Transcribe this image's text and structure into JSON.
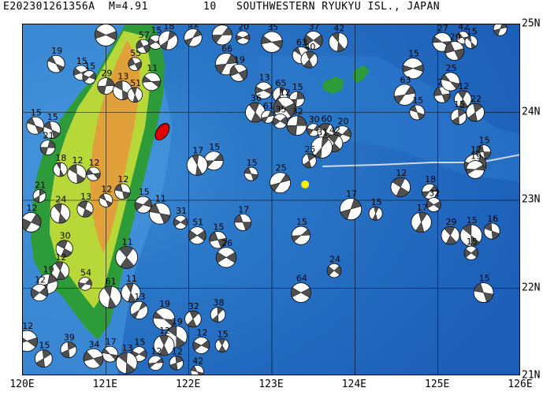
{
  "header": {
    "event_id": "E202301261356A",
    "magnitude": "M=4.91",
    "depth_fragment": "10",
    "region": "SOUTHWESTERN RYUKYU ISL., JAPAN"
  },
  "map": {
    "lon_range": [
      120,
      126
    ],
    "lat_range": [
      21,
      25
    ],
    "x_ticks": [
      "120E",
      "121E",
      "122E",
      "123E",
      "124E",
      "125E",
      "126E"
    ],
    "y_ticks": [
      "25N",
      "24N",
      "23N",
      "22N",
      "21N"
    ],
    "colors": {
      "deep_ocean": "#1c5fb8",
      "shelf_ocean": "#3f8fd8",
      "lowland": "#2e9b3a",
      "plain": "#b8d83a",
      "highland": "#e0a03a",
      "graticule": "#7fb2e6",
      "plate_boundary": "#cfd8e8",
      "event_star": "#e00000",
      "epicenter_marker": "#ffee00"
    },
    "mechanisms": [
      {
        "lon": 120.4,
        "lat": 24.55,
        "depth": "19"
      },
      {
        "lon": 120.7,
        "lat": 24.45,
        "depth": "15"
      },
      {
        "lon": 120.8,
        "lat": 24.4,
        "depth": "15"
      },
      {
        "lon": 121.0,
        "lat": 24.3,
        "depth": "29"
      },
      {
        "lon": 121.2,
        "lat": 24.25,
        "depth": "13"
      },
      {
        "lon": 121.35,
        "lat": 24.2,
        "depth": "51"
      },
      {
        "lon": 121.55,
        "lat": 24.35,
        "depth": "11"
      },
      {
        "lon": 121.35,
        "lat": 24.55,
        "depth": "55"
      },
      {
        "lon": 121.45,
        "lat": 24.75,
        "depth": "57"
      },
      {
        "lon": 121.6,
        "lat": 24.8,
        "depth": "15"
      },
      {
        "lon": 121.75,
        "lat": 24.82,
        "depth": "18"
      },
      {
        "lon": 121.0,
        "lat": 24.88,
        "depth": "13"
      },
      {
        "lon": 122.05,
        "lat": 24.85,
        "depth": "12"
      },
      {
        "lon": 122.4,
        "lat": 24.88,
        "depth": "21"
      },
      {
        "lon": 122.65,
        "lat": 24.85,
        "depth": "20"
      },
      {
        "lon": 123.0,
        "lat": 24.8,
        "depth": "35"
      },
      {
        "lon": 123.5,
        "lat": 24.82,
        "depth": "37"
      },
      {
        "lon": 123.8,
        "lat": 24.8,
        "depth": "42"
      },
      {
        "lon": 123.35,
        "lat": 24.65,
        "depth": "63"
      },
      {
        "lon": 123.45,
        "lat": 24.6,
        "depth": "40"
      },
      {
        "lon": 122.45,
        "lat": 24.55,
        "depth": "66"
      },
      {
        "lon": 122.6,
        "lat": 24.45,
        "depth": "19"
      },
      {
        "lon": 122.9,
        "lat": 24.25,
        "depth": "13"
      },
      {
        "lon": 123.1,
        "lat": 24.2,
        "depth": "65"
      },
      {
        "lon": 123.3,
        "lat": 24.15,
        "depth": "15"
      },
      {
        "lon": 123.15,
        "lat": 24.05,
        "depth": "12"
      },
      {
        "lon": 122.8,
        "lat": 24.0,
        "depth": "36"
      },
      {
        "lon": 122.95,
        "lat": 23.95,
        "depth": "61"
      },
      {
        "lon": 123.1,
        "lat": 23.9,
        "depth": "35"
      },
      {
        "lon": 123.3,
        "lat": 23.85,
        "depth": "32"
      },
      {
        "lon": 123.5,
        "lat": 23.8,
        "depth": "30"
      },
      {
        "lon": 123.65,
        "lat": 23.78,
        "depth": "60"
      },
      {
        "lon": 123.85,
        "lat": 23.75,
        "depth": "20"
      },
      {
        "lon": 123.75,
        "lat": 23.65,
        "depth": "42"
      },
      {
        "lon": 123.6,
        "lat": 23.6,
        "depth": "31"
      },
      {
        "lon": 123.45,
        "lat": 23.45,
        "depth": "25"
      },
      {
        "lon": 122.3,
        "lat": 23.45,
        "depth": "15"
      },
      {
        "lon": 122.1,
        "lat": 23.4,
        "depth": "17"
      },
      {
        "lon": 122.75,
        "lat": 23.3,
        "depth": "15"
      },
      {
        "lon": 123.1,
        "lat": 23.2,
        "depth": "25"
      },
      {
        "lon": 120.15,
        "lat": 23.85,
        "depth": "15"
      },
      {
        "lon": 120.35,
        "lat": 23.8,
        "depth": "15"
      },
      {
        "lon": 120.3,
        "lat": 23.6,
        "depth": "21"
      },
      {
        "lon": 120.45,
        "lat": 23.35,
        "depth": "18"
      },
      {
        "lon": 120.65,
        "lat": 23.3,
        "depth": "12"
      },
      {
        "lon": 120.85,
        "lat": 23.3,
        "depth": "12"
      },
      {
        "lon": 120.2,
        "lat": 23.05,
        "depth": "21"
      },
      {
        "lon": 120.1,
        "lat": 22.75,
        "depth": "12"
      },
      {
        "lon": 120.45,
        "lat": 22.85,
        "depth": "24"
      },
      {
        "lon": 120.75,
        "lat": 22.9,
        "depth": "13"
      },
      {
        "lon": 121.0,
        "lat": 23.0,
        "depth": "12"
      },
      {
        "lon": 121.2,
        "lat": 23.1,
        "depth": "12"
      },
      {
        "lon": 121.45,
        "lat": 22.95,
        "depth": "15"
      },
      {
        "lon": 121.65,
        "lat": 22.85,
        "depth": "11"
      },
      {
        "lon": 121.9,
        "lat": 22.75,
        "depth": "31"
      },
      {
        "lon": 122.1,
        "lat": 22.6,
        "depth": "51"
      },
      {
        "lon": 122.35,
        "lat": 22.55,
        "depth": "15"
      },
      {
        "lon": 122.65,
        "lat": 22.75,
        "depth": "17"
      },
      {
        "lon": 122.45,
        "lat": 22.35,
        "depth": "26"
      },
      {
        "lon": 121.25,
        "lat": 22.35,
        "depth": "11"
      },
      {
        "lon": 120.5,
        "lat": 22.45,
        "depth": "30"
      },
      {
        "lon": 120.45,
        "lat": 22.2,
        "depth": "12"
      },
      {
        "lon": 120.3,
        "lat": 22.05,
        "depth": "19"
      },
      {
        "lon": 120.2,
        "lat": 21.95,
        "depth": "12"
      },
      {
        "lon": 120.75,
        "lat": 22.05,
        "depth": "54"
      },
      {
        "lon": 121.05,
        "lat": 21.9,
        "depth": "61"
      },
      {
        "lon": 121.3,
        "lat": 21.95,
        "depth": "11"
      },
      {
        "lon": 121.4,
        "lat": 21.75,
        "depth": "13"
      },
      {
        "lon": 121.7,
        "lat": 21.65,
        "depth": "19"
      },
      {
        "lon": 122.05,
        "lat": 21.65,
        "depth": "32"
      },
      {
        "lon": 122.35,
        "lat": 21.7,
        "depth": "38"
      },
      {
        "lon": 121.85,
        "lat": 21.45,
        "depth": "19"
      },
      {
        "lon": 121.7,
        "lat": 21.35,
        "depth": "12"
      },
      {
        "lon": 122.15,
        "lat": 21.35,
        "depth": "12"
      },
      {
        "lon": 122.4,
        "lat": 21.35,
        "depth": "15"
      },
      {
        "lon": 121.4,
        "lat": 21.25,
        "depth": "15"
      },
      {
        "lon": 121.05,
        "lat": 21.25,
        "depth": "17"
      },
      {
        "lon": 120.85,
        "lat": 21.2,
        "depth": "34"
      },
      {
        "lon": 121.25,
        "lat": 21.15,
        "depth": "13"
      },
      {
        "lon": 121.6,
        "lat": 21.15,
        "depth": "12"
      },
      {
        "lon": 121.85,
        "lat": 21.15,
        "depth": "12"
      },
      {
        "lon": 122.1,
        "lat": 21.05,
        "depth": "42"
      },
      {
        "lon": 120.55,
        "lat": 21.3,
        "depth": "39"
      },
      {
        "lon": 120.25,
        "lat": 21.2,
        "depth": "15"
      },
      {
        "lon": 120.05,
        "lat": 21.4,
        "depth": "12"
      },
      {
        "lon": 123.95,
        "lat": 22.9,
        "depth": "17"
      },
      {
        "lon": 124.25,
        "lat": 22.85,
        "depth": "15"
      },
      {
        "lon": 124.55,
        "lat": 23.15,
        "depth": "12"
      },
      {
        "lon": 124.9,
        "lat": 23.1,
        "depth": "18"
      },
      {
        "lon": 124.95,
        "lat": 22.95,
        "depth": "32"
      },
      {
        "lon": 124.8,
        "lat": 22.75,
        "depth": "17"
      },
      {
        "lon": 125.15,
        "lat": 22.6,
        "depth": "29"
      },
      {
        "lon": 125.4,
        "lat": 22.6,
        "depth": "15"
      },
      {
        "lon": 125.65,
        "lat": 22.65,
        "depth": "16"
      },
      {
        "lon": 125.4,
        "lat": 22.4,
        "depth": "15"
      },
      {
        "lon": 125.55,
        "lat": 21.95,
        "depth": "15"
      },
      {
        "lon": 123.35,
        "lat": 22.6,
        "depth": "15"
      },
      {
        "lon": 123.75,
        "lat": 22.2,
        "depth": "24"
      },
      {
        "lon": 123.35,
        "lat": 21.95,
        "depth": "64"
      },
      {
        "lon": 124.7,
        "lat": 24.5,
        "depth": "15"
      },
      {
        "lon": 124.6,
        "lat": 24.2,
        "depth": "63"
      },
      {
        "lon": 124.75,
        "lat": 24.0,
        "depth": "15"
      },
      {
        "lon": 125.05,
        "lat": 24.2,
        "depth": "21"
      },
      {
        "lon": 125.15,
        "lat": 24.35,
        "depth": "25"
      },
      {
        "lon": 125.3,
        "lat": 24.15,
        "depth": "12"
      },
      {
        "lon": 125.25,
        "lat": 23.95,
        "depth": "15"
      },
      {
        "lon": 125.45,
        "lat": 24.0,
        "depth": "22"
      },
      {
        "lon": 125.05,
        "lat": 24.8,
        "depth": "27"
      },
      {
        "lon": 125.3,
        "lat": 24.85,
        "depth": "42"
      },
      {
        "lon": 125.4,
        "lat": 24.8,
        "depth": "15"
      },
      {
        "lon": 125.75,
        "lat": 24.95,
        "depth": "47"
      },
      {
        "lon": 125.2,
        "lat": 24.7,
        "depth": "20"
      },
      {
        "lon": 125.55,
        "lat": 23.55,
        "depth": "15"
      },
      {
        "lon": 125.45,
        "lat": 23.4,
        "depth": "12"
      },
      {
        "lon": 125.45,
        "lat": 23.35,
        "depth": "19"
      }
    ],
    "islands": [
      {
        "name": "iriomote-ishigaki",
        "color": "#2e9b3a"
      }
    ]
  }
}
